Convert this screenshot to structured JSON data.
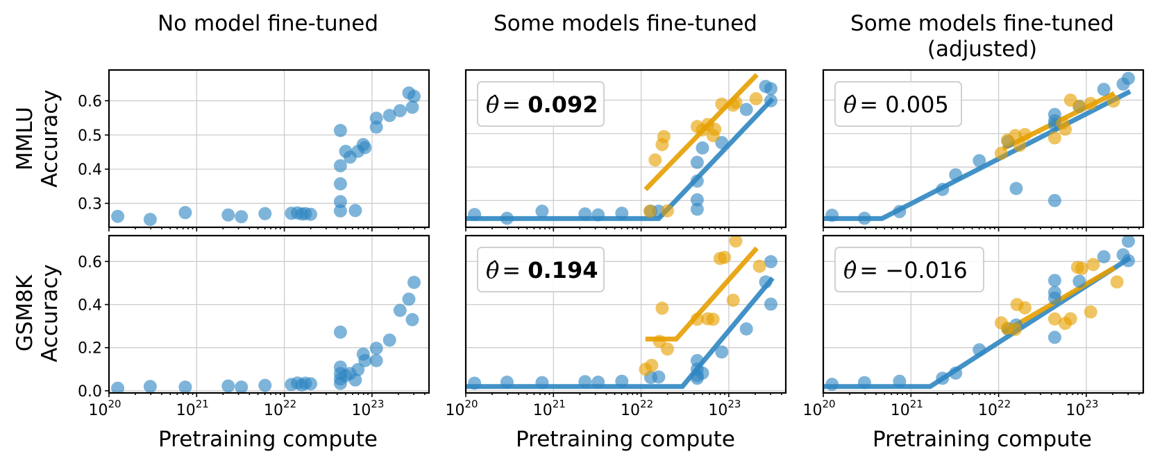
{
  "colors": {
    "blue": "#1f77b4",
    "orange": "#e69f00",
    "blue_fill": "#2e86c1",
    "grid": "#cccccc"
  },
  "columns": [
    "No model fine-tuned",
    "Some models fine-tuned",
    "Some models fine-tuned"
  ],
  "column_subtitles": [
    "",
    "",
    "(adjusted)"
  ],
  "row_ylabels": [
    [
      "MMLU",
      "Accuracy"
    ],
    [
      "GSM8K",
      "Accuracy"
    ]
  ],
  "xlabel": "Pretraining compute",
  "theta_symbol": "θ̂ =",
  "chart_data": [
    {
      "type": "scatter",
      "title": "No model fine-tuned",
      "xlabel": "",
      "ylabel": "MMLU Accuracy",
      "xscale": "log",
      "xlim_log10": [
        20,
        23.65
      ],
      "ylim": [
        0.23,
        0.69
      ],
      "yticks": [
        "0.3",
        "0.4",
        "0.5",
        "0.6"
      ],
      "ytick_values": [
        0.3,
        0.4,
        0.5,
        0.6
      ],
      "show_xtick_labels": false,
      "grid": true,
      "series": [
        {
          "color": "blue",
          "points": [
            [
              20.1,
              0.262
            ],
            [
              20.47,
              0.253
            ],
            [
              20.87,
              0.273
            ],
            [
              21.36,
              0.266
            ],
            [
              21.51,
              0.261
            ],
            [
              21.78,
              0.27
            ],
            [
              22.08,
              0.271
            ],
            [
              22.15,
              0.272
            ],
            [
              22.2,
              0.269
            ],
            [
              22.24,
              0.27
            ],
            [
              22.3,
              0.268
            ],
            [
              22.64,
              0.513
            ],
            [
              22.64,
              0.41
            ],
            [
              22.64,
              0.357
            ],
            [
              22.64,
              0.305
            ],
            [
              22.64,
              0.278
            ],
            [
              22.7,
              0.452
            ],
            [
              22.75,
              0.435
            ],
            [
              22.81,
              0.279
            ],
            [
              22.84,
              0.452
            ],
            [
              22.9,
              0.472
            ],
            [
              22.92,
              0.463
            ],
            [
              23.05,
              0.549
            ],
            [
              23.05,
              0.523
            ],
            [
              23.2,
              0.557
            ],
            [
              23.32,
              0.571
            ],
            [
              23.42,
              0.623
            ],
            [
              23.46,
              0.581
            ],
            [
              23.48,
              0.613
            ]
          ]
        }
      ]
    },
    {
      "type": "scatter",
      "title": "Some models fine-tuned",
      "xlabel": "",
      "ylabel": "",
      "xscale": "log",
      "xlim_log10": [
        20,
        23.65
      ],
      "ylim": [
        0.22,
        0.69
      ],
      "show_xtick_labels": false,
      "grid": true,
      "theta": "0.092",
      "theta_bold": true,
      "series": [
        {
          "color": "blue",
          "points": [
            [
              20.1,
              0.258
            ],
            [
              20.47,
              0.247
            ],
            [
              20.87,
              0.268
            ],
            [
              21.36,
              0.26
            ],
            [
              21.51,
              0.257
            ],
            [
              21.78,
              0.262
            ],
            [
              22.11,
              0.268
            ],
            [
              22.2,
              0.268
            ],
            [
              22.64,
              0.414
            ],
            [
              22.64,
              0.358
            ],
            [
              22.64,
              0.302
            ],
            [
              22.64,
              0.274
            ],
            [
              22.7,
              0.457
            ],
            [
              22.92,
              0.473
            ],
            [
              23.2,
              0.572
            ],
            [
              23.42,
              0.641
            ],
            [
              23.48,
              0.598
            ],
            [
              23.48,
              0.634
            ]
          ]
        },
        {
          "color": "orange",
          "points": [
            [
              22.1,
              0.268
            ],
            [
              22.16,
              0.421
            ],
            [
              22.24,
              0.467
            ],
            [
              22.26,
              0.491
            ],
            [
              22.3,
              0.269
            ],
            [
              22.64,
              0.521
            ],
            [
              22.7,
              0.511
            ],
            [
              22.76,
              0.527
            ],
            [
              22.82,
              0.494
            ],
            [
              22.84,
              0.513
            ],
            [
              22.92,
              0.588
            ],
            [
              23.05,
              0.585
            ],
            [
              23.08,
              0.593
            ],
            [
              23.31,
              0.604
            ]
          ]
        }
      ],
      "fits": [
        {
          "color": "blue",
          "points": [
            [
              20,
              0.246
            ],
            [
              22.2,
              0.246
            ],
            [
              23.5,
              0.604
            ]
          ]
        },
        {
          "color": "orange",
          "points": [
            [
              22.05,
              0.333
            ],
            [
              23.32,
              0.676
            ]
          ]
        }
      ]
    },
    {
      "type": "scatter",
      "title": "Some models fine-tuned (adjusted)",
      "xlabel": "",
      "ylabel": "",
      "xscale": "log",
      "xlim_log10": [
        20,
        23.65
      ],
      "ylim": [
        0.22,
        0.69
      ],
      "show_xtick_labels": false,
      "grid": true,
      "theta": "0.005",
      "theta_bold": false,
      "series": [
        {
          "color": "blue",
          "points": [
            [
              20.1,
              0.256
            ],
            [
              20.47,
              0.247
            ],
            [
              20.87,
              0.267
            ],
            [
              21.36,
              0.333
            ],
            [
              21.51,
              0.377
            ],
            [
              21.78,
              0.419
            ],
            [
              22.11,
              0.476
            ],
            [
              22.2,
              0.336
            ],
            [
              22.64,
              0.557
            ],
            [
              22.64,
              0.538
            ],
            [
              22.64,
              0.527
            ],
            [
              22.64,
              0.3
            ],
            [
              22.92,
              0.581
            ],
            [
              23.2,
              0.632
            ],
            [
              23.42,
              0.648
            ],
            [
              23.48,
              0.665
            ]
          ]
        },
        {
          "color": "orange",
          "points": [
            [
              22.03,
              0.441
            ],
            [
              22.1,
              0.48
            ],
            [
              22.19,
              0.494
            ],
            [
              22.24,
              0.465
            ],
            [
              22.3,
              0.497
            ],
            [
              22.64,
              0.487
            ],
            [
              22.73,
              0.531
            ],
            [
              22.76,
              0.513
            ],
            [
              22.82,
              0.6
            ],
            [
              22.92,
              0.581
            ],
            [
              23.05,
              0.59
            ],
            [
              23.31,
              0.597
            ]
          ]
        }
      ],
      "fits": [
        {
          "color": "blue",
          "points": [
            [
              20,
              0.246
            ],
            [
              20.67,
              0.246
            ],
            [
              23.5,
              0.626
            ]
          ]
        },
        {
          "color": "orange",
          "points": [
            [
              22.05,
              0.455
            ],
            [
              23.32,
              0.62
            ]
          ]
        }
      ]
    },
    {
      "type": "scatter",
      "title": "No model fine-tuned",
      "xlabel": "Pretraining compute",
      "ylabel": "GSM8K Accuracy",
      "xscale": "log",
      "xlim_log10": [
        20,
        23.65
      ],
      "ylim": [
        -0.01,
        0.72
      ],
      "yticks": [
        "0.0",
        "0.2",
        "0.4",
        "0.6"
      ],
      "ytick_values": [
        0.0,
        0.2,
        0.4,
        0.6
      ],
      "xticks": [
        "20",
        "21",
        "22",
        "23"
      ],
      "show_xtick_labels": true,
      "grid": true,
      "series": [
        {
          "color": "blue",
          "points": [
            [
              20.1,
              0.012
            ],
            [
              20.47,
              0.02
            ],
            [
              20.87,
              0.017
            ],
            [
              21.36,
              0.022
            ],
            [
              21.51,
              0.017
            ],
            [
              21.78,
              0.025
            ],
            [
              22.08,
              0.029
            ],
            [
              22.15,
              0.036
            ],
            [
              22.2,
              0.027
            ],
            [
              22.24,
              0.035
            ],
            [
              22.3,
              0.032
            ],
            [
              22.64,
              0.272
            ],
            [
              22.64,
              0.11
            ],
            [
              22.64,
              0.08
            ],
            [
              22.64,
              0.055
            ],
            [
              22.64,
              0.034
            ],
            [
              22.7,
              0.07
            ],
            [
              22.75,
              0.08
            ],
            [
              22.81,
              0.05
            ],
            [
              22.84,
              0.098
            ],
            [
              22.9,
              0.17
            ],
            [
              22.92,
              0.14
            ],
            [
              23.05,
              0.197
            ],
            [
              23.05,
              0.14
            ],
            [
              23.2,
              0.235
            ],
            [
              23.32,
              0.373
            ],
            [
              23.42,
              0.425
            ],
            [
              23.46,
              0.33
            ],
            [
              23.48,
              0.503
            ]
          ]
        }
      ]
    },
    {
      "type": "scatter",
      "title": "Some models fine-tuned",
      "xlabel": "Pretraining compute",
      "ylabel": "",
      "xscale": "log",
      "xlim_log10": [
        20,
        23.65
      ],
      "ylim": [
        -0.01,
        0.72
      ],
      "xticks": [
        "20",
        "21",
        "22",
        "23"
      ],
      "show_xtick_labels": true,
      "grid": true,
      "theta": "0.194",
      "theta_bold": true,
      "series": [
        {
          "color": "blue",
          "points": [
            [
              20.1,
              0.035
            ],
            [
              20.47,
              0.04
            ],
            [
              20.87,
              0.038
            ],
            [
              21.36,
              0.042
            ],
            [
              21.51,
              0.04
            ],
            [
              21.78,
              0.044
            ],
            [
              22.11,
              0.062
            ],
            [
              22.2,
              0.064
            ],
            [
              22.64,
              0.14
            ],
            [
              22.64,
              0.1
            ],
            [
              22.64,
              0.07
            ],
            [
              22.64,
              0.058
            ],
            [
              22.7,
              0.082
            ],
            [
              22.92,
              0.18
            ],
            [
              23.2,
              0.287
            ],
            [
              23.42,
              0.505
            ],
            [
              23.48,
              0.402
            ],
            [
              23.48,
              0.599
            ]
          ]
        },
        {
          "color": "orange",
          "points": [
            [
              22.05,
              0.1
            ],
            [
              22.12,
              0.118
            ],
            [
              22.21,
              0.229
            ],
            [
              22.24,
              0.383
            ],
            [
              22.3,
              0.194
            ],
            [
              22.64,
              0.332
            ],
            [
              22.76,
              0.334
            ],
            [
              22.82,
              0.332
            ],
            [
              22.9,
              0.614
            ],
            [
              22.95,
              0.619
            ],
            [
              23.05,
              0.42
            ],
            [
              23.08,
              0.695
            ],
            [
              23.35,
              0.578
            ]
          ]
        }
      ],
      "fits": [
        {
          "color": "blue",
          "points": [
            [
              20,
              0.02
            ],
            [
              22.47,
              0.02
            ],
            [
              23.5,
              0.523
            ]
          ]
        },
        {
          "color": "orange",
          "points": [
            [
              22.05,
              0.24
            ],
            [
              22.4,
              0.24
            ],
            [
              23.32,
              0.662
            ]
          ]
        }
      ]
    },
    {
      "type": "scatter",
      "title": "Some models fine-tuned (adjusted)",
      "xlabel": "Pretraining compute",
      "ylabel": "",
      "xscale": "log",
      "xlim_log10": [
        20,
        23.65
      ],
      "ylim": [
        -0.01,
        0.72
      ],
      "xticks": [
        "20",
        "21",
        "22",
        "23"
      ],
      "show_xtick_labels": true,
      "grid": true,
      "theta": "−0.016",
      "theta_bold": false,
      "series": [
        {
          "color": "blue",
          "points": [
            [
              20.1,
              0.03
            ],
            [
              20.47,
              0.038
            ],
            [
              20.87,
              0.044
            ],
            [
              21.36,
              0.058
            ],
            [
              21.51,
              0.082
            ],
            [
              21.78,
              0.19
            ],
            [
              22.11,
              0.286
            ],
            [
              22.2,
              0.305
            ],
            [
              22.64,
              0.512
            ],
            [
              22.64,
              0.456
            ],
            [
              22.64,
              0.43
            ],
            [
              22.64,
              0.248
            ],
            [
              22.92,
              0.508
            ],
            [
              23.2,
              0.622
            ],
            [
              23.42,
              0.631
            ],
            [
              23.48,
              0.604
            ],
            [
              23.48,
              0.694
            ]
          ]
        },
        {
          "color": "orange",
          "points": [
            [
              22.03,
              0.315
            ],
            [
              22.1,
              0.29
            ],
            [
              22.19,
              0.285
            ],
            [
              22.21,
              0.4
            ],
            [
              22.3,
              0.385
            ],
            [
              22.64,
              0.333
            ],
            [
              22.76,
              0.313
            ],
            [
              22.82,
              0.334
            ],
            [
              22.9,
              0.573
            ],
            [
              22.95,
              0.568
            ],
            [
              23.05,
              0.366
            ],
            [
              23.08,
              0.586
            ],
            [
              23.35,
              0.505
            ]
          ]
        }
      ],
      "fits": [
        {
          "color": "blue",
          "points": [
            [
              20,
              0.02
            ],
            [
              21.22,
              0.02
            ],
            [
              23.5,
              0.617
            ]
          ]
        },
        {
          "color": "orange",
          "points": [
            [
              22.05,
              0.27
            ],
            [
              23.32,
              0.571
            ]
          ]
        }
      ]
    }
  ]
}
